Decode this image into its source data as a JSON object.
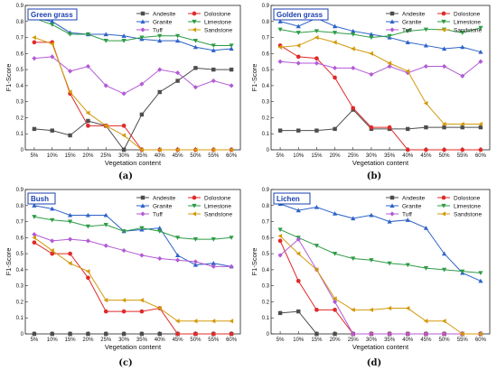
{
  "colors": {
    "Andesite": "#4d4d4d",
    "Dolostone": "#e02a2a",
    "Granite": "#2e62c8",
    "Limestone": "#2e9b46",
    "Tuff": "#b35ad6",
    "Sandstone": "#d39a0d"
  },
  "markers": {
    "Andesite": "square",
    "Dolostone": "circle",
    "Granite": "triangle-up",
    "Limestone": "triangle-down",
    "Tuff": "diamond",
    "Sandstone": "triangle-left"
  },
  "chart_data": [
    {
      "type": "line",
      "title": "Green grass",
      "caption": "(a)",
      "xlabel": "Vegetation content",
      "ylabel": "F1-Score",
      "ylim": [
        0,
        0.9
      ],
      "yticks": [
        "0",
        "0.1",
        "0.2",
        "0.3",
        "0.4",
        "0.5",
        "0.6",
        "0.7",
        "0.8",
        "0.9"
      ],
      "legend": "top-right",
      "categories": [
        "5%",
        "10%",
        "15%",
        "20%",
        "25%",
        "30%",
        "35%",
        "40%",
        "45%",
        "50%",
        "55%",
        "60%"
      ],
      "series": [
        {
          "name": "Andesite",
          "values": [
            0.13,
            0.12,
            0.09,
            0.18,
            0.15,
            0.0,
            0.22,
            0.36,
            0.43,
            0.51,
            0.5,
            0.5
          ]
        },
        {
          "name": "Dolostone",
          "values": [
            0.67,
            0.67,
            0.35,
            0.15,
            0.15,
            0.15,
            0.0,
            0.0,
            0.0,
            0.0,
            0.0,
            0.0
          ]
        },
        {
          "name": "Granite",
          "values": [
            0.82,
            0.8,
            0.73,
            0.72,
            0.72,
            0.71,
            0.69,
            0.68,
            0.68,
            0.64,
            0.62,
            0.63
          ]
        },
        {
          "name": "Limestone",
          "values": [
            0.82,
            0.78,
            0.72,
            0.72,
            0.68,
            0.68,
            0.7,
            0.71,
            0.71,
            0.68,
            0.65,
            0.65
          ]
        },
        {
          "name": "Tuff",
          "values": [
            0.57,
            0.58,
            0.49,
            0.52,
            0.4,
            0.35,
            0.41,
            0.5,
            0.48,
            0.39,
            0.43,
            0.4
          ]
        },
        {
          "name": "Sandstone",
          "values": [
            0.7,
            0.66,
            0.36,
            0.23,
            0.15,
            0.09,
            0.0,
            0.0,
            0.0,
            0.0,
            0.0,
            0.0
          ]
        }
      ]
    },
    {
      "type": "line",
      "title": "Golden grass",
      "caption": "(b)",
      "xlabel": "Vegetation content",
      "ylabel": "F1-Score",
      "ylim": [
        0,
        0.9
      ],
      "yticks": [
        "0",
        "0.1",
        "0.2",
        "0.3",
        "0.4",
        "0.5",
        "0.6",
        "0.7",
        "0.8",
        "0.9"
      ],
      "legend": "top-right",
      "categories": [
        "5%",
        "10%",
        "15%",
        "20%",
        "25%",
        "30%",
        "35%",
        "40%",
        "45%",
        "50%",
        "55%",
        "60%"
      ],
      "series": [
        {
          "name": "Andesite",
          "values": [
            0.12,
            0.12,
            0.12,
            0.13,
            0.25,
            0.13,
            0.13,
            0.13,
            0.14,
            0.14,
            0.14,
            0.14
          ]
        },
        {
          "name": "Dolostone",
          "values": [
            0.65,
            0.58,
            0.57,
            0.45,
            0.26,
            0.14,
            0.14,
            0.0,
            0.0,
            0.0,
            0.0,
            0.0
          ]
        },
        {
          "name": "Granite",
          "values": [
            0.8,
            0.77,
            0.82,
            0.77,
            0.74,
            0.72,
            0.7,
            0.67,
            0.65,
            0.63,
            0.64,
            0.61
          ]
        },
        {
          "name": "Limestone",
          "values": [
            0.75,
            0.73,
            0.74,
            0.73,
            0.72,
            0.7,
            0.71,
            0.74,
            0.75,
            0.75,
            0.73,
            0.76
          ]
        },
        {
          "name": "Tuff",
          "values": [
            0.55,
            0.54,
            0.54,
            0.51,
            0.51,
            0.47,
            0.52,
            0.48,
            0.52,
            0.52,
            0.46,
            0.55
          ]
        },
        {
          "name": "Sandstone",
          "values": [
            0.64,
            0.65,
            0.7,
            0.67,
            0.63,
            0.6,
            0.54,
            0.49,
            0.29,
            0.16,
            0.16,
            0.16
          ]
        }
      ]
    },
    {
      "type": "line",
      "title": "Bush",
      "caption": "(c)",
      "xlabel": "Vegetation content",
      "ylabel": "F1-Score",
      "ylim": [
        0,
        0.9
      ],
      "yticks": [
        "0",
        "0.1",
        "0.2",
        "0.3",
        "0.4",
        "0.5",
        "0.6",
        "0.7",
        "0.8",
        "0.9"
      ],
      "legend": "top-right",
      "categories": [
        "5%",
        "10%",
        "15%",
        "20%",
        "25%",
        "30%",
        "35%",
        "40%",
        "45%",
        "50%",
        "55%",
        "60%"
      ],
      "series": [
        {
          "name": "Andesite",
          "values": [
            0.0,
            0.0,
            0.0,
            0.0,
            0.0,
            0.0,
            0.0,
            0.0,
            0.0,
            0.0,
            0.0,
            0.0
          ]
        },
        {
          "name": "Dolostone",
          "values": [
            0.57,
            0.5,
            0.5,
            0.35,
            0.14,
            0.14,
            0.14,
            0.16,
            0.0,
            0.0,
            0.0,
            0.0
          ]
        },
        {
          "name": "Granite",
          "values": [
            0.8,
            0.78,
            0.74,
            0.74,
            0.74,
            0.64,
            0.65,
            0.66,
            0.49,
            0.43,
            0.44,
            0.42
          ]
        },
        {
          "name": "Limestone",
          "values": [
            0.73,
            0.71,
            0.7,
            0.67,
            0.68,
            0.64,
            0.66,
            0.64,
            0.6,
            0.59,
            0.59,
            0.6
          ]
        },
        {
          "name": "Tuff",
          "values": [
            0.62,
            0.58,
            0.59,
            0.58,
            0.55,
            0.52,
            0.49,
            0.47,
            0.46,
            0.45,
            0.42,
            0.42
          ]
        },
        {
          "name": "Sandstone",
          "values": [
            0.6,
            0.52,
            0.44,
            0.39,
            0.21,
            0.21,
            0.21,
            0.16,
            0.08,
            0.08,
            0.08,
            0.08
          ]
        }
      ]
    },
    {
      "type": "line",
      "title": "Lichen",
      "caption": "(d)",
      "xlabel": "Vegetation content",
      "ylabel": "F1-Score",
      "ylim": [
        0,
        0.9
      ],
      "yticks": [
        "0",
        "0.1",
        "0.2",
        "0.3",
        "0.4",
        "0.5",
        "0.6",
        "0.7",
        "0.8",
        "0.9"
      ],
      "legend": "top-right",
      "categories": [
        "5%",
        "10%",
        "15%",
        "20%",
        "25%",
        "30%",
        "35%",
        "40%",
        "45%",
        "50%",
        "55%",
        "60%"
      ],
      "series": [
        {
          "name": "Andesite",
          "values": [
            0.13,
            0.14,
            0.0,
            0.0,
            0.0,
            0.0,
            0.0,
            0.0,
            0.0,
            0.0,
            0.0,
            0.0
          ]
        },
        {
          "name": "Dolostone",
          "values": [
            0.58,
            0.33,
            0.15,
            0.15,
            0.0,
            0.0,
            0.0,
            0.0,
            0.0,
            0.0,
            0.0,
            0.0
          ]
        },
        {
          "name": "Granite",
          "values": [
            0.81,
            0.77,
            0.79,
            0.75,
            0.72,
            0.74,
            0.7,
            0.71,
            0.66,
            0.5,
            0.38,
            0.33
          ]
        },
        {
          "name": "Limestone",
          "values": [
            0.65,
            0.6,
            0.55,
            0.5,
            0.47,
            0.46,
            0.44,
            0.43,
            0.41,
            0.4,
            0.39,
            0.38
          ]
        },
        {
          "name": "Tuff",
          "values": [
            0.49,
            0.59,
            0.4,
            0.2,
            0.0,
            0.0,
            0.0,
            0.0,
            0.0,
            0.0,
            0.0,
            0.0
          ]
        },
        {
          "name": "Sandstone",
          "values": [
            0.61,
            0.5,
            0.4,
            0.22,
            0.15,
            0.15,
            0.16,
            0.16,
            0.08,
            0.08,
            0.0,
            0.0
          ]
        }
      ]
    }
  ]
}
